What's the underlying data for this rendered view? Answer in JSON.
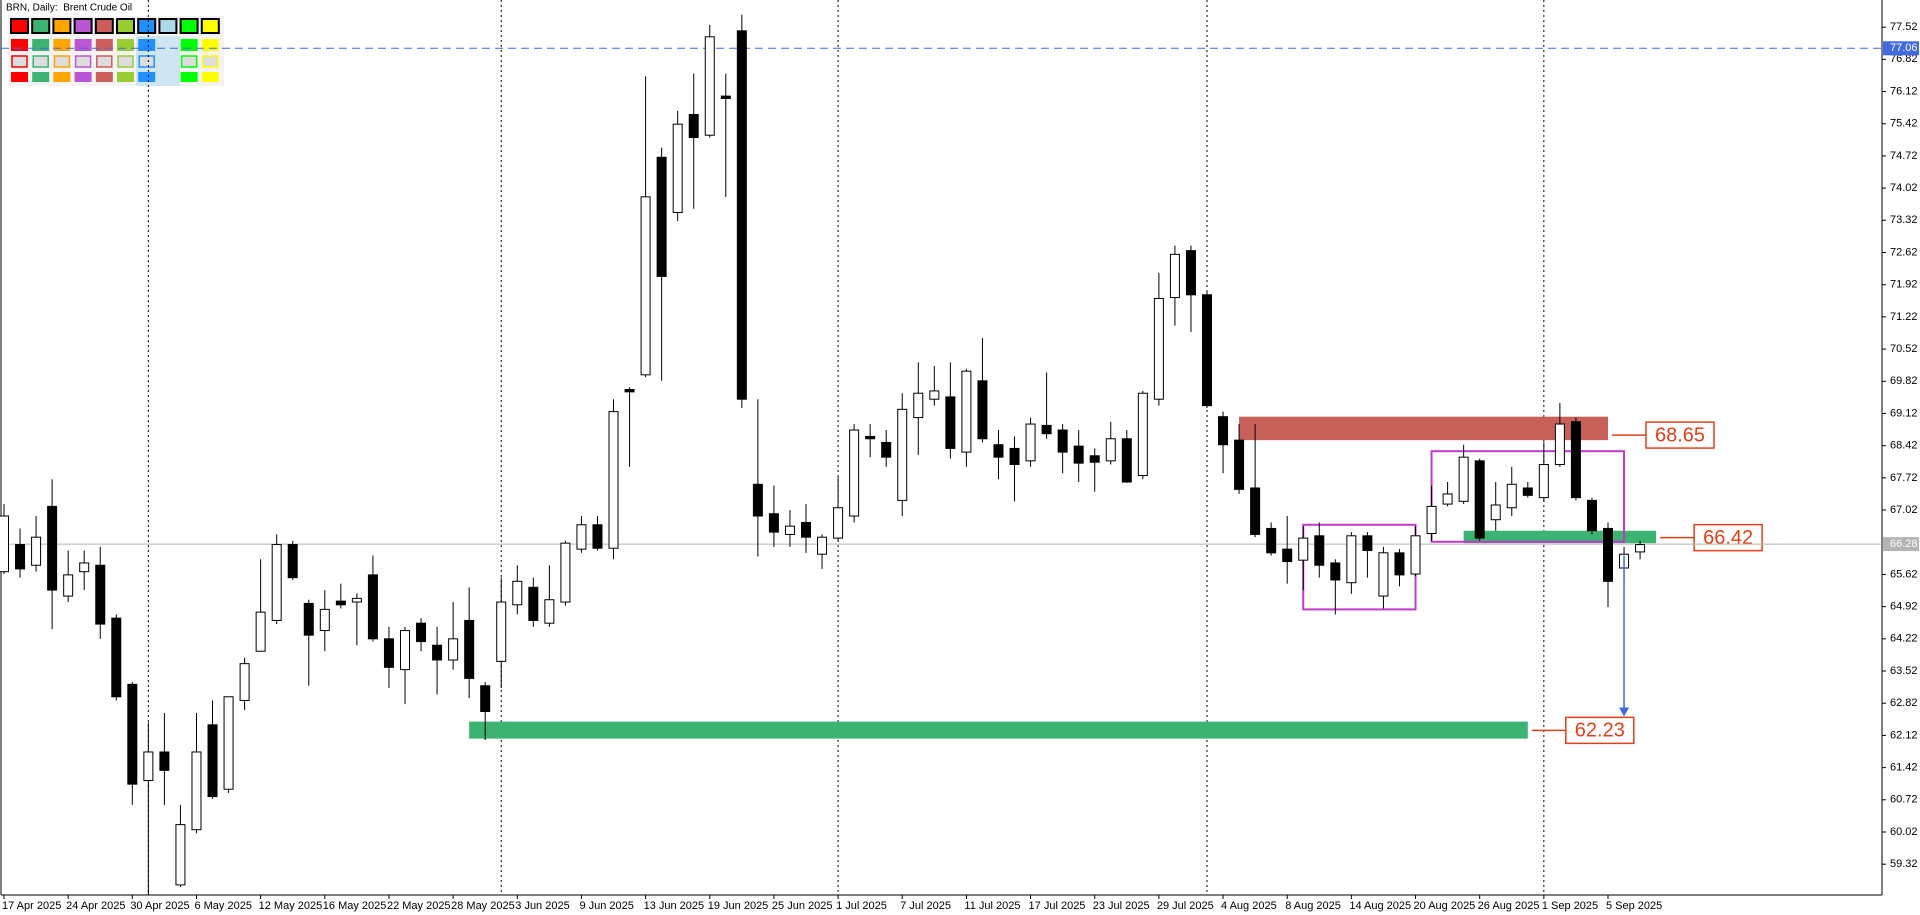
{
  "chart_data": {
    "type": "candlestick",
    "title": "BRN, Daily:  Brent Crude Oil",
    "categories": [
      "17 Apr 2025",
      null,
      null,
      null,
      "24 Apr 2025",
      null,
      null,
      null,
      "30 Apr 2025",
      null,
      null,
      null,
      "6 May 2025",
      null,
      null,
      null,
      "12 May 2025",
      null,
      null,
      null,
      "16 May 2025",
      null,
      null,
      null,
      "22 May 2025",
      null,
      null,
      null,
      "28 May 2025",
      null,
      null,
      null,
      "3 Jun 2025",
      null,
      null,
      null,
      "9 Jun 2025",
      null,
      null,
      null,
      "13 Jun 2025",
      null,
      null,
      null,
      "19 Jun 2025",
      null,
      null,
      null,
      "25 Jun 2025",
      null,
      null,
      null,
      "1 Jul 2025",
      null,
      null,
      null,
      "7 Jul 2025",
      null,
      null,
      null,
      "11 Jul 2025",
      null,
      null,
      null,
      "17 Jul 2025",
      null,
      null,
      null,
      "23 Jul 2025",
      null,
      null,
      null,
      "29 Jul 2025",
      null,
      null,
      null,
      "4 Aug 2025",
      null,
      null,
      null,
      "8 Aug 2025",
      null,
      null,
      null,
      "14 Aug 2025",
      null,
      null,
      null,
      "20 Aug 2025",
      null,
      null,
      null,
      "26 Aug 2025",
      null,
      null,
      null,
      "1 Sep 2025",
      null,
      null,
      null,
      "5 Sep 2025",
      null,
      null
    ],
    "open": [
      65.68,
      66.27,
      65.82,
      67.1,
      65.15,
      65.68,
      65.82,
      64.67,
      63.23,
      61.14,
      61.76,
      58.87,
      60.07,
      62.35,
      60.95,
      62.88,
      63.95,
      64.62,
      66.27,
      64.99,
      64.4,
      65.04,
      65.02,
      65.61,
      64.22,
      63.55,
      64.56,
      64.08,
      63.76,
      64.62,
      63.2,
      63.73,
      64.96,
      65.34,
      64.56,
      65.02,
      66.17,
      66.7,
      66.19,
      69.64,
      69.96,
      74.69,
      73.49,
      75.62,
      75.17,
      76.02,
      77.44,
      67.58,
      66.94,
      66.49,
      66.75,
      66.06,
      66.41,
      66.89,
      68.62,
      68.49,
      67.23,
      69.03,
      69.43,
      69.48,
      68.28,
      69.83,
      68.44,
      68.36,
      68.09,
      68.86,
      68.76,
      68.41,
      68.2,
      68.09,
      68.57,
      67.77,
      69.43,
      71.64,
      72.66,
      71.7,
      69.05,
      68.54,
      67.5,
      66.62,
      66.17,
      65.93,
      66.46,
      65.87,
      65.44,
      66.46,
      65.15,
      66.09,
      65.63,
      66.51,
      67.15,
      67.21,
      68.09,
      66.81,
      67.07,
      67.5,
      67.29,
      68.01,
      68.94,
      67.23,
      66.62,
      65.76,
      66.11
    ],
    "high": [
      67.15,
      66.62,
      66.89,
      67.69,
      66.14,
      66.14,
      66.22,
      64.75,
      63.28,
      62.4,
      62.61,
      60.61,
      62.61,
      62.88,
      62.96,
      63.81,
      65.95,
      66.49,
      66.35,
      65.07,
      65.28,
      65.42,
      65.21,
      66.03,
      64.48,
      64.48,
      64.67,
      64.48,
      65.02,
      65.34,
      63.28,
      65.55,
      65.82,
      65.55,
      65.82,
      66.35,
      66.89,
      66.89,
      69.43,
      69.69,
      76.45,
      74.9,
      75.7,
      76.51,
      77.57,
      76.51,
      77.79,
      69.43,
      67.55,
      67.02,
      67.15,
      66.49,
      67.74,
      68.89,
      68.89,
      68.76,
      69.56,
      70.23,
      70.15,
      70.23,
      70.09,
      70.76,
      68.76,
      68.62,
      69.03,
      70.01,
      68.89,
      68.76,
      68.36,
      68.94,
      68.76,
      69.61,
      72.18,
      72.77,
      72.77,
      71.8,
      69.16,
      68.89,
      68.89,
      66.75,
      66.89,
      66.67,
      66.75,
      65.95,
      66.54,
      66.54,
      66.22,
      66.17,
      66.67,
      67.55,
      67.63,
      68.44,
      68.14,
      67.63,
      67.96,
      67.63,
      68.49,
      69.35,
      69.03,
      67.29,
      66.75,
      66.22,
      66.35
    ],
    "low": [
      65.63,
      65.55,
      65.68,
      64.43,
      65.02,
      65.28,
      64.22,
      62.88,
      60.61,
      58.66,
      60.61,
      58.82,
      59.99,
      60.74,
      60.87,
      62.67,
      63.95,
      64.54,
      65.5,
      63.2,
      63.95,
      64.88,
      64.08,
      64.16,
      63.15,
      62.8,
      63.95,
      63.01,
      63.55,
      62.93,
      62.02,
      63.15,
      64.75,
      64.48,
      64.48,
      64.94,
      66.09,
      66.14,
      65.95,
      67.96,
      69.91,
      69.83,
      73.3,
      73.57,
      75.12,
      73.83,
      69.24,
      66.01,
      66.22,
      66.22,
      66.09,
      65.74,
      66.35,
      66.75,
      68.17,
      67.96,
      66.89,
      68.22,
      69.29,
      68.14,
      67.96,
      68.49,
      67.69,
      67.21,
      67.96,
      68.57,
      67.82,
      67.63,
      67.42,
      68.01,
      67.61,
      67.69,
      69.29,
      71.03,
      70.89,
      69.24,
      67.82,
      67.37,
      66.43,
      66.03,
      65.42,
      65.28,
      65.55,
      64.75,
      65.2,
      65.55,
      64.88,
      65.36,
      65.58,
      66.35,
      67.1,
      67.15,
      66.35,
      66.57,
      66.89,
      67.29,
      67.21,
      67.96,
      67.23,
      66.49,
      64.91,
      65.42,
      65.95
    ],
    "close": [
      66.89,
      65.74,
      66.43,
      65.28,
      65.61,
      65.87,
      64.54,
      62.96,
      61.06,
      61.76,
      61.36,
      60.18,
      61.76,
      60.79,
      62.96,
      63.68,
      64.8,
      66.27,
      65.55,
      64.3,
      64.86,
      64.96,
      65.1,
      64.22,
      63.6,
      64.4,
      64.16,
      63.76,
      64.22,
      63.36,
      62.64,
      65.02,
      65.47,
      64.62,
      65.07,
      66.3,
      66.7,
      66.19,
      69.16,
      69.59,
      73.83,
      72.1,
      75.41,
      75.12,
      77.31,
      75.97,
      69.43,
      66.89,
      66.54,
      66.67,
      66.43,
      66.43,
      67.07,
      68.76,
      68.57,
      68.17,
      69.21,
      69.56,
      69.61,
      68.36,
      70.04,
      68.57,
      68.17,
      68.01,
      68.89,
      68.68,
      68.28,
      68.04,
      68.06,
      68.57,
      67.63,
      69.56,
      71.62,
      72.58,
      71.7,
      69.29,
      68.44,
      67.47,
      66.49,
      66.09,
      65.9,
      66.41,
      65.82,
      65.5,
      66.46,
      66.14,
      66.09,
      65.61,
      66.46,
      67.1,
      67.37,
      68.17,
      66.41,
      67.13,
      67.58,
      67.34,
      68.01,
      68.89,
      67.29,
      66.57,
      65.47,
      66.06,
      66.27
    ],
    "up_color": "#ffffff",
    "down_color": "#000000",
    "ylim": [
      58.65,
      78.11
    ],
    "yticks": [
      77.52,
      76.82,
      76.12,
      75.42,
      74.72,
      74.02,
      73.32,
      72.62,
      71.92,
      71.22,
      70.52,
      69.82,
      69.12,
      68.42,
      67.72,
      67.02,
      65.62,
      64.92,
      64.22,
      63.52,
      62.82,
      62.12,
      61.42,
      60.72,
      60.02,
      59.32
    ],
    "period_separators": [
      9,
      31,
      52,
      75,
      96
    ],
    "hlines": [
      {
        "value": 77.06,
        "color": "#4169e1",
        "dashed": true
      },
      {
        "value": 66.28,
        "color": "#b4b4b4",
        "dashed": false
      }
    ],
    "zones": [
      {
        "value": 68.65,
        "color": "#c8605a",
        "x_range": [
          77,
          100
        ],
        "y_range": [
          68.54,
          69.05
        ]
      },
      {
        "value": 66.42,
        "color": "#3cb371",
        "x_range": [
          91,
          103
        ],
        "y_range": [
          66.3,
          66.57
        ]
      },
      {
        "value": 62.23,
        "color": "#3cb371",
        "x_range": [
          29,
          95
        ],
        "y_range": [
          62.05,
          62.42
        ]
      }
    ],
    "boxes": [
      {
        "x_range": [
          81,
          88
        ],
        "y_range": [
          64.86,
          66.7
        ]
      },
      {
        "x_range": [
          89,
          101
        ],
        "y_range": [
          66.33,
          68.3
        ]
      }
    ],
    "box_color": "#c03cc8",
    "arrow": {
      "x": 101,
      "from": 66.03,
      "to": 62.53,
      "color": "#4169e1"
    }
  }
}
